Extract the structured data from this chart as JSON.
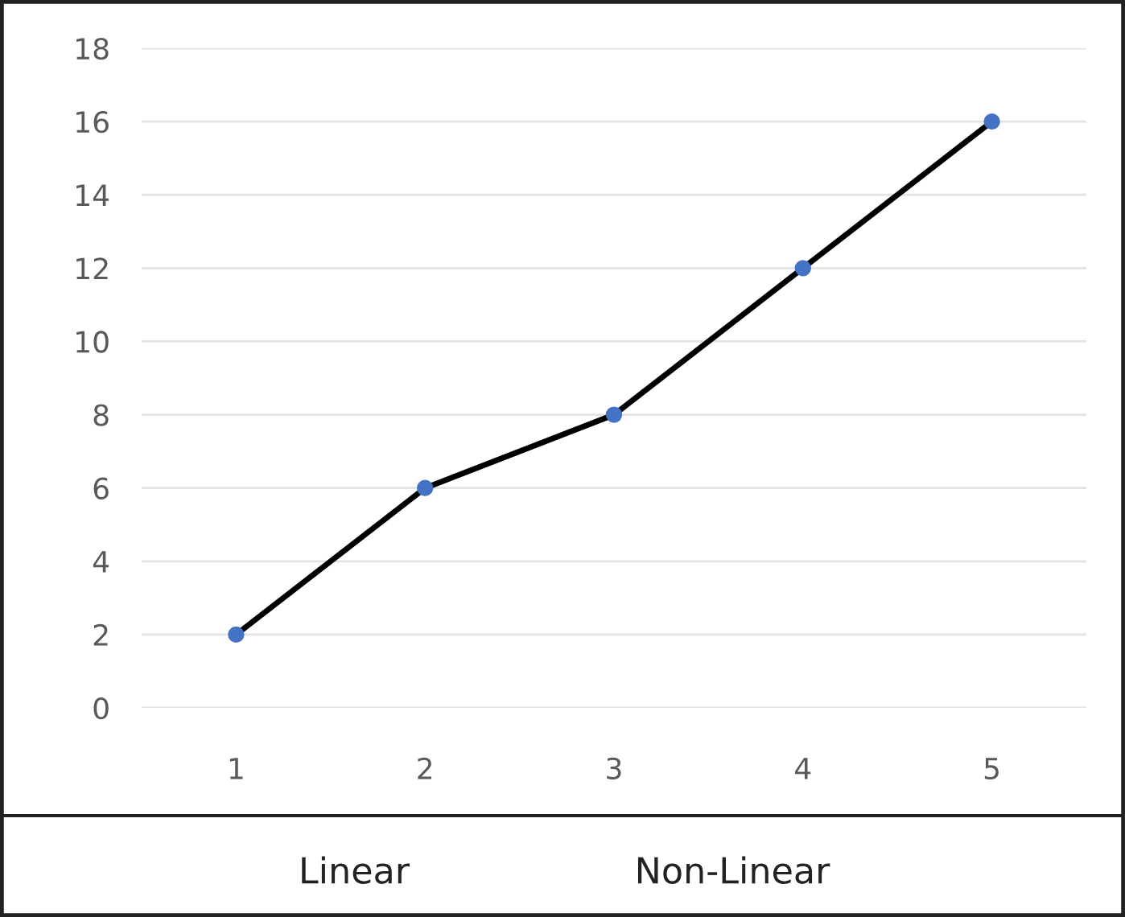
{
  "chart_data": {
    "type": "line",
    "categories": [
      "1",
      "2",
      "3",
      "4",
      "5"
    ],
    "series": [
      {
        "color": "#000000",
        "colors": [
          "#4472c4",
          "#4472c4",
          "#4472c4",
          "#4472c4",
          "#4472c4"
        ],
        "values": [
          2,
          6,
          8,
          12,
          16
        ]
      }
    ],
    "ylim": [
      0,
      18
    ],
    "yticks": [
      0,
      2,
      4,
      6,
      8,
      10,
      12,
      14,
      16,
      18
    ],
    "grid": "y",
    "marker": "circle",
    "line_style": "solid",
    "annotations": [
      "Linear",
      "Non-Linear"
    ]
  }
}
